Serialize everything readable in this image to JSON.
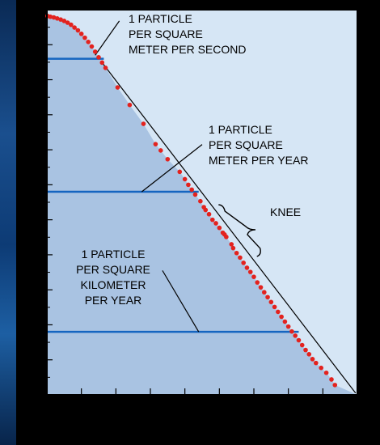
{
  "chart_data": {
    "type": "scatter",
    "title": "",
    "xlabel": "",
    "ylabel": "",
    "xlim": [
      0,
      9
    ],
    "ylim": [
      0,
      11
    ],
    "x_ticks": [
      1,
      2,
      3,
      4,
      5,
      6,
      7,
      8
    ],
    "y_ticks": [
      1,
      2,
      3,
      4,
      5,
      6,
      7,
      8,
      9,
      10
    ],
    "grid": false,
    "colors": {
      "plot_background": "#d6e6f5",
      "shaded_region": "#a9c3e2",
      "points": "#e3221e",
      "flux_lines": "#1565c0",
      "frame": "#000000"
    },
    "series": [
      {
        "values": [
          [
            0.02,
            10.82
          ],
          [
            0.1,
            10.8
          ],
          [
            0.2,
            10.78
          ],
          [
            0.3,
            10.75
          ],
          [
            0.4,
            10.72
          ],
          [
            0.5,
            10.68
          ],
          [
            0.6,
            10.63
          ],
          [
            0.7,
            10.57
          ],
          [
            0.8,
            10.49
          ],
          [
            0.9,
            10.41
          ],
          [
            1.0,
            10.31
          ],
          [
            1.1,
            10.2
          ],
          [
            1.2,
            10.08
          ],
          [
            1.3,
            9.95
          ],
          [
            1.4,
            9.8
          ],
          [
            1.5,
            9.64
          ],
          [
            1.6,
            9.49
          ],
          [
            1.7,
            9.34
          ],
          [
            2.05,
            8.78
          ],
          [
            2.4,
            8.28
          ],
          [
            2.8,
            7.74
          ],
          [
            3.15,
            7.16
          ],
          [
            3.3,
            6.98
          ],
          [
            3.5,
            6.73
          ],
          [
            3.85,
            6.37
          ],
          [
            4.0,
            6.16
          ],
          [
            4.1,
            6.0
          ],
          [
            4.2,
            5.86
          ],
          [
            4.3,
            5.72
          ],
          [
            4.45,
            5.53
          ],
          [
            4.55,
            5.36
          ],
          [
            4.6,
            5.28
          ],
          [
            4.7,
            5.16
          ],
          [
            4.8,
            5.0
          ],
          [
            4.9,
            4.9
          ],
          [
            5.0,
            4.77
          ],
          [
            5.1,
            4.63
          ],
          [
            5.15,
            4.58
          ],
          [
            5.2,
            4.51
          ],
          [
            5.35,
            4.3
          ],
          [
            5.4,
            4.19
          ],
          [
            5.5,
            4.05
          ],
          [
            5.6,
            3.92
          ],
          [
            5.7,
            3.77
          ],
          [
            5.8,
            3.63
          ],
          [
            5.9,
            3.51
          ],
          [
            6.0,
            3.37
          ],
          [
            6.1,
            3.21
          ],
          [
            6.2,
            3.07
          ],
          [
            6.3,
            2.93
          ],
          [
            6.4,
            2.79
          ],
          [
            6.5,
            2.65
          ],
          [
            6.6,
            2.51
          ],
          [
            6.7,
            2.37
          ],
          [
            6.8,
            2.23
          ],
          [
            6.9,
            2.09
          ],
          [
            7.0,
            1.95
          ],
          [
            7.1,
            1.81
          ],
          [
            7.2,
            1.69
          ],
          [
            7.3,
            1.56
          ],
          [
            7.4,
            1.42
          ],
          [
            7.5,
            1.28
          ],
          [
            7.6,
            1.16
          ],
          [
            7.7,
            1.02
          ],
          [
            7.8,
            0.91
          ],
          [
            7.95,
            0.77
          ],
          [
            8.1,
            0.63
          ],
          [
            8.25,
            0.44
          ],
          [
            8.35,
            0.28
          ]
        ]
      }
    ],
    "annotations": [
      {
        "lines": [
          "1 PARTICLE",
          "PER SQUARE",
          "METER PER SECOND"
        ],
        "flux_level": 9.6,
        "line_x_end": 1.65,
        "leader_from": [
          1.4,
          9.7
        ],
        "leader_to": [
          2.1,
          10.68
        ]
      },
      {
        "lines": [
          "1 PARTICLE",
          "PER SQUARE",
          "METER PER YEAR"
        ],
        "flux_level": 5.8,
        "line_x_end": 4.4,
        "leader_from": [
          2.75,
          5.8
        ],
        "leader_to": [
          4.5,
          7.15
        ]
      },
      {
        "lines": [
          "1 PARTICLE",
          "PER SQUARE",
          "KILOMETER",
          "PER YEAR"
        ],
        "flux_level": 1.8,
        "line_x_end": 7.3,
        "leader_from": [
          4.4,
          1.8
        ],
        "leader_to": [
          3.35,
          3.55
        ]
      },
      {
        "lines": [
          "KNEE"
        ],
        "bracket_from": [
          4.6,
          5.43
        ],
        "bracket_to": [
          5.9,
          4.0
        ]
      }
    ]
  }
}
